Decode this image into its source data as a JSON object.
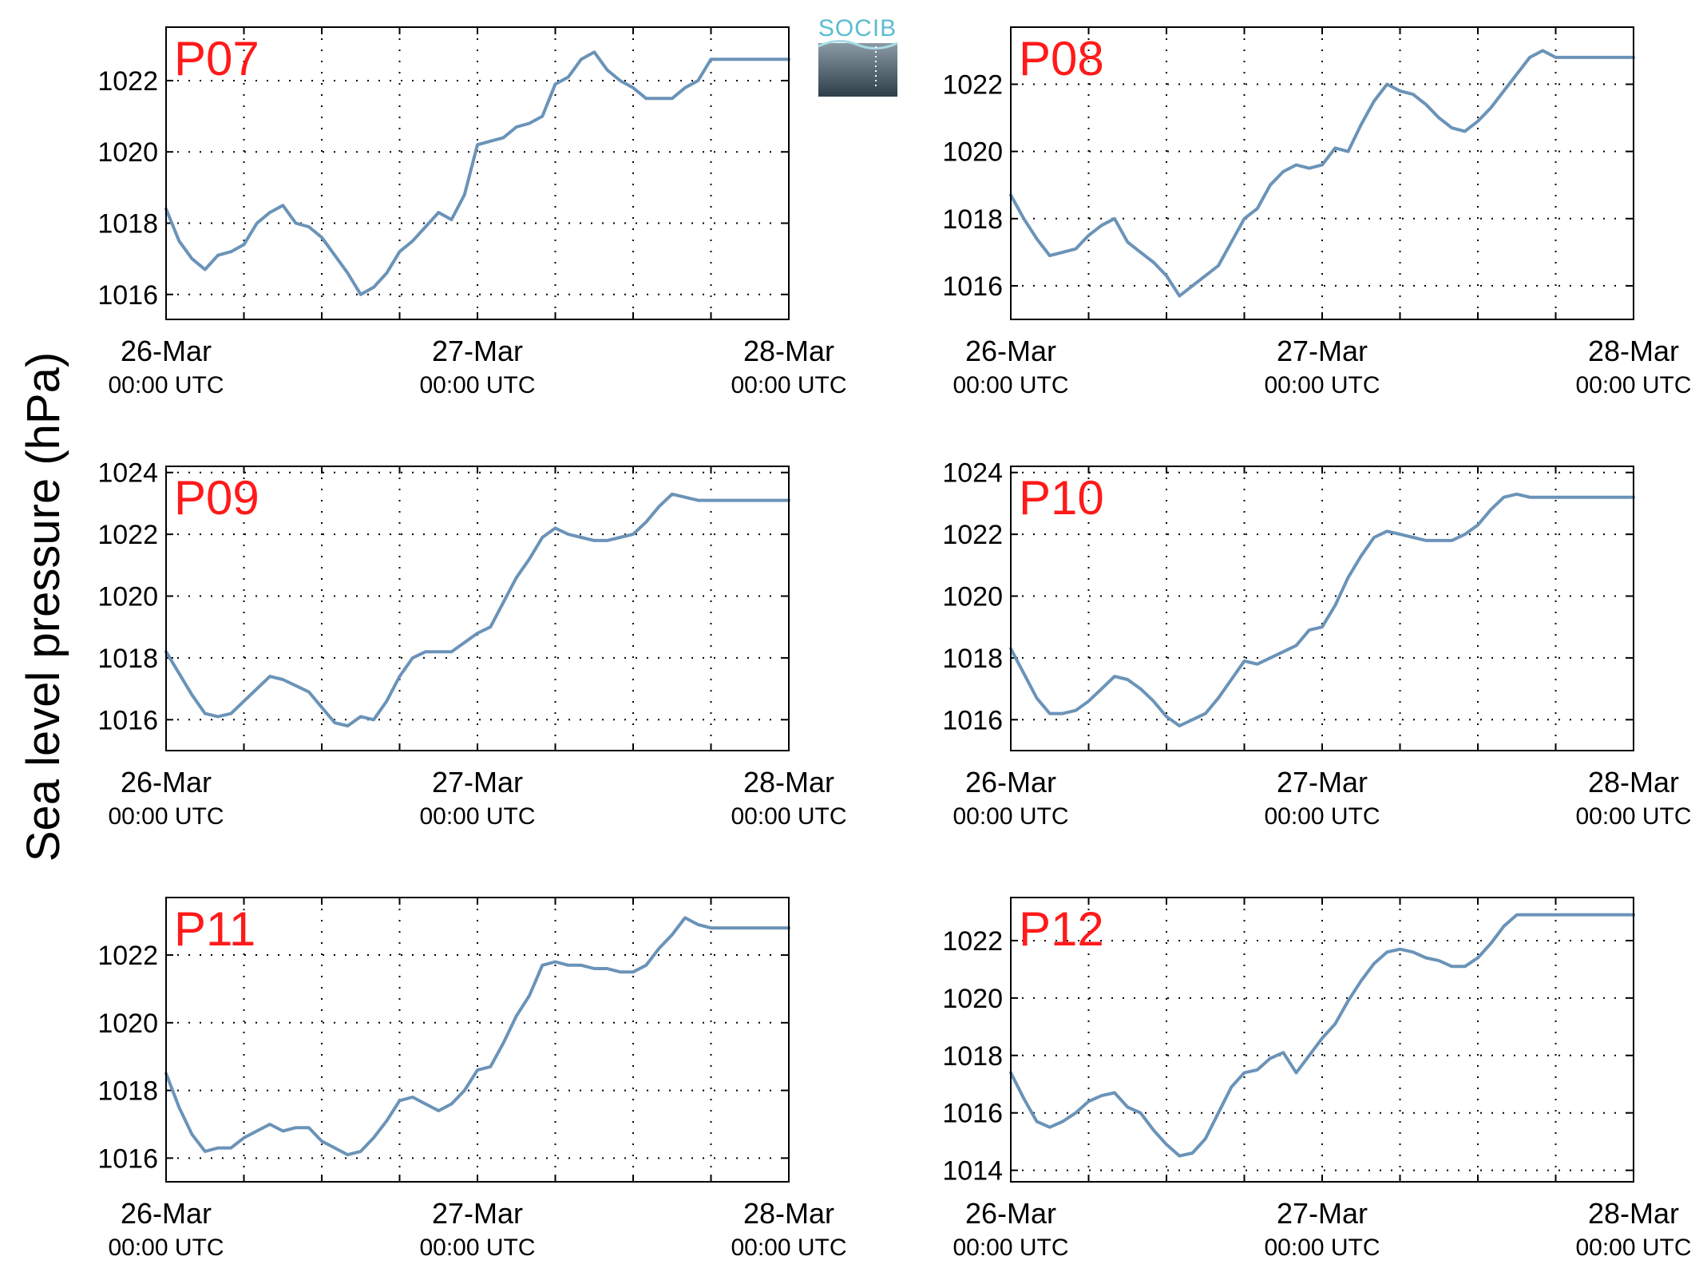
{
  "figure": {
    "ylabel": "Sea level pressure (hPa)",
    "logo_text": "SOCIB",
    "colors": {
      "line": "#6b93b8",
      "panel_label": "#ff1a1a",
      "logo_top": "#5bbcd0",
      "logo_bottom": "#2e3e49"
    }
  },
  "chart_data": [
    {
      "type": "line",
      "title": "P07",
      "grid": true,
      "x": [
        0,
        1,
        2,
        3,
        4,
        5,
        6,
        7,
        8,
        9,
        10,
        11,
        12,
        13,
        14,
        15,
        16,
        17,
        18,
        19,
        20,
        21,
        22,
        23,
        24,
        25,
        26,
        27,
        28,
        29,
        30,
        31,
        32,
        33,
        34,
        35,
        36,
        37,
        38,
        39,
        40,
        41,
        42,
        43,
        44,
        45,
        46,
        47,
        48
      ],
      "x_ticks": [
        {
          "value": 0,
          "date": "26-Mar",
          "time": "00:00 UTC"
        },
        {
          "value": 24,
          "date": "27-Mar",
          "time": "00:00 UTC"
        },
        {
          "value": 48,
          "date": "28-Mar",
          "time": "00:00 UTC"
        }
      ],
      "xlim": [
        0,
        48
      ],
      "ylim": [
        1015.3,
        1023.5
      ],
      "yticks": [
        1016,
        1018,
        1020,
        1022
      ],
      "series": [
        {
          "values": [
            1018.4,
            1017.5,
            1017.0,
            1016.7,
            1017.1,
            1017.2,
            1017.4,
            1018.0,
            1018.3,
            1018.5,
            1018.0,
            1017.9,
            1017.6,
            1017.1,
            1016.6,
            1016.0,
            1016.2,
            1016.6,
            1017.2,
            1017.5,
            1017.9,
            1018.3,
            1018.1,
            1018.8,
            1020.2,
            1020.3,
            1020.4,
            1020.7,
            1020.8,
            1021.0,
            1021.9,
            1022.1,
            1022.6,
            1022.8,
            1022.3,
            1022.0,
            1021.8,
            1021.5,
            1021.5,
            1021.5,
            1021.8,
            1022.0,
            1022.6,
            1022.6,
            1022.6,
            1022.6,
            1022.6,
            1022.6,
            1022.6
          ]
        }
      ]
    },
    {
      "type": "line",
      "title": "P08",
      "grid": true,
      "x": [
        0,
        1,
        2,
        3,
        4,
        5,
        6,
        7,
        8,
        9,
        10,
        11,
        12,
        13,
        14,
        15,
        16,
        17,
        18,
        19,
        20,
        21,
        22,
        23,
        24,
        25,
        26,
        27,
        28,
        29,
        30,
        31,
        32,
        33,
        34,
        35,
        36,
        37,
        38,
        39,
        40,
        41,
        42,
        43,
        44,
        45,
        46,
        47,
        48
      ],
      "x_ticks": [
        {
          "value": 0,
          "date": "26-Mar",
          "time": "00:00 UTC"
        },
        {
          "value": 24,
          "date": "27-Mar",
          "time": "00:00 UTC"
        },
        {
          "value": 48,
          "date": "28-Mar",
          "time": "00:00 UTC"
        }
      ],
      "xlim": [
        0,
        48
      ],
      "ylim": [
        1015.0,
        1023.7
      ],
      "yticks": [
        1016,
        1018,
        1020,
        1022
      ],
      "series": [
        {
          "values": [
            1018.7,
            1018.0,
            1017.4,
            1016.9,
            1017.0,
            1017.1,
            1017.5,
            1017.8,
            1018.0,
            1017.3,
            1017.0,
            1016.7,
            1016.3,
            1015.7,
            1016.0,
            1016.3,
            1016.6,
            1017.3,
            1018.0,
            1018.3,
            1019.0,
            1019.4,
            1019.6,
            1019.5,
            1019.6,
            1020.1,
            1020.0,
            1020.8,
            1021.5,
            1022.0,
            1021.8,
            1021.7,
            1021.4,
            1021.0,
            1020.7,
            1020.6,
            1020.9,
            1021.3,
            1021.8,
            1022.3,
            1022.8,
            1023.0,
            1022.8,
            1022.8,
            1022.8,
            1022.8,
            1022.8,
            1022.8,
            1022.8
          ]
        }
      ]
    },
    {
      "type": "line",
      "title": "P09",
      "grid": true,
      "x": [
        0,
        1,
        2,
        3,
        4,
        5,
        6,
        7,
        8,
        9,
        10,
        11,
        12,
        13,
        14,
        15,
        16,
        17,
        18,
        19,
        20,
        21,
        22,
        23,
        24,
        25,
        26,
        27,
        28,
        29,
        30,
        31,
        32,
        33,
        34,
        35,
        36,
        37,
        38,
        39,
        40,
        41,
        42,
        43,
        44,
        45,
        46,
        47,
        48
      ],
      "x_ticks": [
        {
          "value": 0,
          "date": "26-Mar",
          "time": "00:00 UTC"
        },
        {
          "value": 24,
          "date": "27-Mar",
          "time": "00:00 UTC"
        },
        {
          "value": 48,
          "date": "28-Mar",
          "time": "00:00 UTC"
        }
      ],
      "xlim": [
        0,
        48
      ],
      "ylim": [
        1015.0,
        1024.2
      ],
      "yticks": [
        1016,
        1018,
        1020,
        1022,
        1024
      ],
      "series": [
        {
          "values": [
            1018.2,
            1017.5,
            1016.8,
            1016.2,
            1016.1,
            1016.2,
            1016.6,
            1017.0,
            1017.4,
            1017.3,
            1017.1,
            1016.9,
            1016.4,
            1015.9,
            1015.8,
            1016.1,
            1016.0,
            1016.6,
            1017.4,
            1018.0,
            1018.2,
            1018.2,
            1018.2,
            1018.5,
            1018.8,
            1019.0,
            1019.8,
            1020.6,
            1021.2,
            1021.9,
            1022.2,
            1022.0,
            1021.9,
            1021.8,
            1021.8,
            1021.9,
            1022.0,
            1022.4,
            1022.9,
            1023.3,
            1023.2,
            1023.1,
            1023.1,
            1023.1,
            1023.1,
            1023.1,
            1023.1,
            1023.1,
            1023.1
          ]
        }
      ]
    },
    {
      "type": "line",
      "title": "P10",
      "grid": true,
      "x": [
        0,
        1,
        2,
        3,
        4,
        5,
        6,
        7,
        8,
        9,
        10,
        11,
        12,
        13,
        14,
        15,
        16,
        17,
        18,
        19,
        20,
        21,
        22,
        23,
        24,
        25,
        26,
        27,
        28,
        29,
        30,
        31,
        32,
        33,
        34,
        35,
        36,
        37,
        38,
        39,
        40,
        41,
        42,
        43,
        44,
        45,
        46,
        47,
        48
      ],
      "x_ticks": [
        {
          "value": 0,
          "date": "26-Mar",
          "time": "00:00 UTC"
        },
        {
          "value": 24,
          "date": "27-Mar",
          "time": "00:00 UTC"
        },
        {
          "value": 48,
          "date": "28-Mar",
          "time": "00:00 UTC"
        }
      ],
      "xlim": [
        0,
        48
      ],
      "ylim": [
        1015.0,
        1024.2
      ],
      "yticks": [
        1016,
        1018,
        1020,
        1022,
        1024
      ],
      "series": [
        {
          "values": [
            1018.3,
            1017.5,
            1016.7,
            1016.2,
            1016.2,
            1016.3,
            1016.6,
            1017.0,
            1017.4,
            1017.3,
            1017.0,
            1016.6,
            1016.1,
            1015.8,
            1016.0,
            1016.2,
            1016.7,
            1017.3,
            1017.9,
            1017.8,
            1018.0,
            1018.2,
            1018.4,
            1018.9,
            1019.0,
            1019.7,
            1020.6,
            1021.3,
            1021.9,
            1022.1,
            1022.0,
            1021.9,
            1021.8,
            1021.8,
            1021.8,
            1022.0,
            1022.3,
            1022.8,
            1023.2,
            1023.3,
            1023.2,
            1023.2,
            1023.2,
            1023.2,
            1023.2,
            1023.2,
            1023.2,
            1023.2,
            1023.2
          ]
        }
      ]
    },
    {
      "type": "line",
      "title": "P11",
      "grid": true,
      "x": [
        0,
        1,
        2,
        3,
        4,
        5,
        6,
        7,
        8,
        9,
        10,
        11,
        12,
        13,
        14,
        15,
        16,
        17,
        18,
        19,
        20,
        21,
        22,
        23,
        24,
        25,
        26,
        27,
        28,
        29,
        30,
        31,
        32,
        33,
        34,
        35,
        36,
        37,
        38,
        39,
        40,
        41,
        42,
        43,
        44,
        45,
        46,
        47,
        48
      ],
      "x_ticks": [
        {
          "value": 0,
          "date": "26-Mar",
          "time": "00:00 UTC"
        },
        {
          "value": 24,
          "date": "27-Mar",
          "time": "00:00 UTC"
        },
        {
          "value": 48,
          "date": "28-Mar",
          "time": "00:00 UTC"
        }
      ],
      "xlim": [
        0,
        48
      ],
      "ylim": [
        1015.3,
        1023.7
      ],
      "yticks": [
        1016,
        1018,
        1020,
        1022
      ],
      "series": [
        {
          "values": [
            1018.5,
            1017.5,
            1016.7,
            1016.2,
            1016.3,
            1016.3,
            1016.6,
            1016.8,
            1017.0,
            1016.8,
            1016.9,
            1016.9,
            1016.5,
            1016.3,
            1016.1,
            1016.2,
            1016.6,
            1017.1,
            1017.7,
            1017.8,
            1017.6,
            1017.4,
            1017.6,
            1018.0,
            1018.6,
            1018.7,
            1019.4,
            1020.2,
            1020.8,
            1021.7,
            1021.8,
            1021.7,
            1021.7,
            1021.6,
            1021.6,
            1021.5,
            1021.5,
            1021.7,
            1022.2,
            1022.6,
            1023.1,
            1022.9,
            1022.8,
            1022.8,
            1022.8,
            1022.8,
            1022.8,
            1022.8,
            1022.8
          ]
        }
      ]
    },
    {
      "type": "line",
      "title": "P12",
      "grid": true,
      "x": [
        0,
        1,
        2,
        3,
        4,
        5,
        6,
        7,
        8,
        9,
        10,
        11,
        12,
        13,
        14,
        15,
        16,
        17,
        18,
        19,
        20,
        21,
        22,
        23,
        24,
        25,
        26,
        27,
        28,
        29,
        30,
        31,
        32,
        33,
        34,
        35,
        36,
        37,
        38,
        39,
        40,
        41,
        42,
        43,
        44,
        45,
        46,
        47,
        48
      ],
      "x_ticks": [
        {
          "value": 0,
          "date": "26-Mar",
          "time": "00:00 UTC"
        },
        {
          "value": 24,
          "date": "27-Mar",
          "time": "00:00 UTC"
        },
        {
          "value": 48,
          "date": "28-Mar",
          "time": "00:00 UTC"
        }
      ],
      "xlim": [
        0,
        48
      ],
      "ylim": [
        1013.6,
        1023.5
      ],
      "yticks": [
        1014,
        1016,
        1018,
        1020,
        1022
      ],
      "series": [
        {
          "values": [
            1017.4,
            1016.5,
            1015.7,
            1015.5,
            1015.7,
            1016.0,
            1016.4,
            1016.6,
            1016.7,
            1016.2,
            1016.0,
            1015.4,
            1014.9,
            1014.5,
            1014.6,
            1015.1,
            1016.0,
            1016.9,
            1017.4,
            1017.5,
            1017.9,
            1018.1,
            1017.4,
            1018.0,
            1018.6,
            1019.1,
            1019.9,
            1020.6,
            1021.2,
            1021.6,
            1021.7,
            1021.6,
            1021.4,
            1021.3,
            1021.1,
            1021.1,
            1021.4,
            1021.9,
            1022.5,
            1022.9,
            1022.9,
            1022.9,
            1022.9,
            1022.9,
            1022.9,
            1022.9,
            1022.9,
            1022.9,
            1022.9
          ]
        }
      ]
    }
  ]
}
